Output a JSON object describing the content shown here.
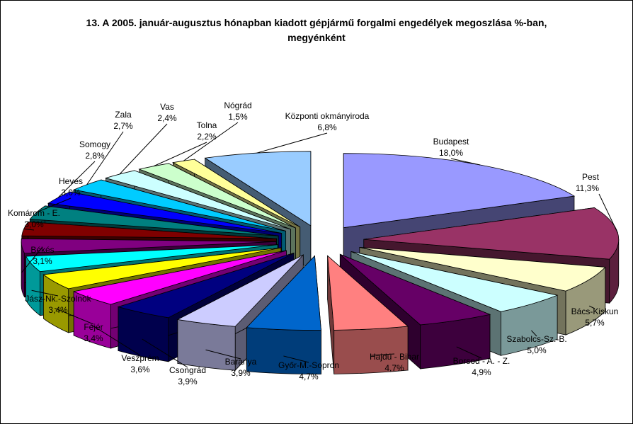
{
  "chart_data": {
    "type": "pie",
    "variant": "3d-exploded",
    "title_line1": "13. A  2005. január-augusztus hónapban kiadott gépjármű forgalmi engedélyek megoszlása %-ban,",
    "title_line2": "megyénként",
    "legend": "none",
    "slices": [
      {
        "name": "Budapest",
        "value": 18.0,
        "label": "18,0%",
        "color": "#9999ff"
      },
      {
        "name": "Pest",
        "value": 11.3,
        "label": "11,3%",
        "color": "#993366"
      },
      {
        "name": "Bács-Kiskun",
        "value": 5.7,
        "label": "5,7%",
        "color": "#ffffcc"
      },
      {
        "name": "Szabolcs-Sz.-B.",
        "value": 5.0,
        "label": "5,0%",
        "color": "#ccffff"
      },
      {
        "name": "Borsod - A. - Z.",
        "value": 4.9,
        "label": "4,9%",
        "color": "#660066"
      },
      {
        "name": "Hajdú - Bihar",
        "value": 4.7,
        "label": "4,7%",
        "color": "#ff8080"
      },
      {
        "name": "Győr-M.-Sopron",
        "value": 4.7,
        "label": "4,7%",
        "color": "#0066cc"
      },
      {
        "name": "Baranya",
        "value": 3.9,
        "label": "3,9%",
        "color": "#ccccff"
      },
      {
        "name": "Csongrád",
        "value": 3.9,
        "label": "3,9%",
        "color": "#000080"
      },
      {
        "name": "Veszprém",
        "value": 3.6,
        "label": "3,6%",
        "color": "#ff00ff"
      },
      {
        "name": "Fejér",
        "value": 3.4,
        "label": "3,4%",
        "color": "#ffff00"
      },
      {
        "name": "Jász-Nk.-Szolnok",
        "value": 3.4,
        "label": "3,4%",
        "color": "#00ffff"
      },
      {
        "name": "Békés",
        "value": 3.1,
        "label": "3,1%",
        "color": "#800080"
      },
      {
        "name": "Komárom - E.",
        "value": 3.0,
        "label": "3,0%",
        "color": "#800000"
      },
      {
        "name": "Heves",
        "value": 3.0,
        "label": "3,0%",
        "color": "#008080"
      },
      {
        "name": "Somogy",
        "value": 2.8,
        "label": "2,8%",
        "color": "#0000ff"
      },
      {
        "name": "Zala",
        "value": 2.7,
        "label": "2,7%",
        "color": "#00ccff"
      },
      {
        "name": "Vas",
        "value": 2.4,
        "label": "2,4%",
        "color": "#ccffff"
      },
      {
        "name": "Tolna",
        "value": 2.2,
        "label": "2,2%",
        "color": "#ccffcc"
      },
      {
        "name": "Nógrád",
        "value": 1.5,
        "label": "1,5%",
        "color": "#ffff99"
      },
      {
        "name": "Központi okmányiroda",
        "value": 6.8,
        "label": "6,8%",
        "color": "#99ccff"
      }
    ]
  }
}
